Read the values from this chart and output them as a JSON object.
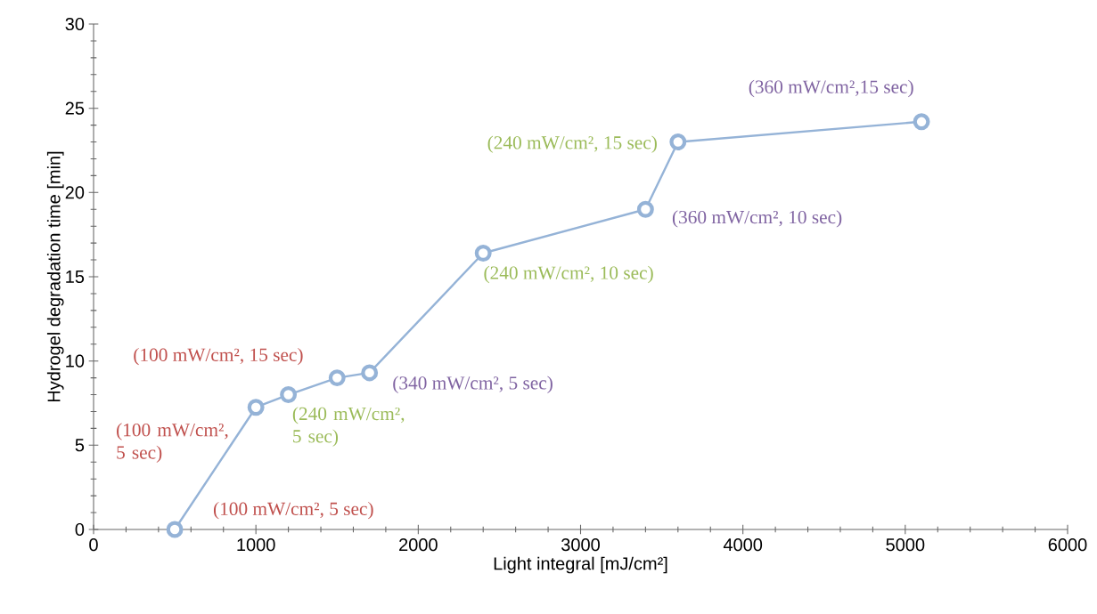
{
  "chart_data": {
    "type": "line",
    "xlabel": "Light integral [mJ/cm²]",
    "ylabel": "Hydrogel degradation time [min]",
    "x": [
      500,
      1000,
      1200,
      1500,
      1700,
      2400,
      3400,
      3600,
      5100
    ],
    "series": [
      {
        "color": "#95b3d7",
        "values": [
          0,
          7.25,
          8,
          9,
          9.3,
          16.4,
          19,
          23,
          24.2
        ]
      }
    ],
    "xlim": [
      0,
      6000
    ],
    "xticks": [
      0,
      1000,
      2000,
      3000,
      4000,
      5000,
      6000
    ],
    "ylim": [
      0,
      30
    ],
    "yticks": [
      0,
      5,
      10,
      15,
      20,
      25,
      30
    ],
    "grid": false,
    "marker": "circle",
    "line_style": "solid",
    "annotations": [
      {
        "text": "(100 mW/cm², 5 sec)",
        "x": 500,
        "y": 0
      },
      {
        "text": "(100 mW/cm², 5 sec)",
        "x": 1000,
        "y": 7.25
      },
      {
        "text": "(100 mW/cm², 15 sec)",
        "x": 1500,
        "y": 9
      },
      {
        "text": "(240 mW/cm², 5 sec)",
        "x": 1200,
        "y": 8
      },
      {
        "text": "(340 mW/cm², 5 sec)",
        "x": 1700,
        "y": 9.3
      },
      {
        "text": "(240 mW/cm², 10 sec)",
        "x": 2400,
        "y": 16.4
      },
      {
        "text": "(360 mW/cm², 10 sec)",
        "x": 3400,
        "y": 19
      },
      {
        "text": "(240 mW/cm², 15 sec)",
        "x": 3600,
        "y": 23
      },
      {
        "text": "(360 mW/cm²,15 sec)",
        "x": 5100,
        "y": 24.2
      }
    ]
  }
}
